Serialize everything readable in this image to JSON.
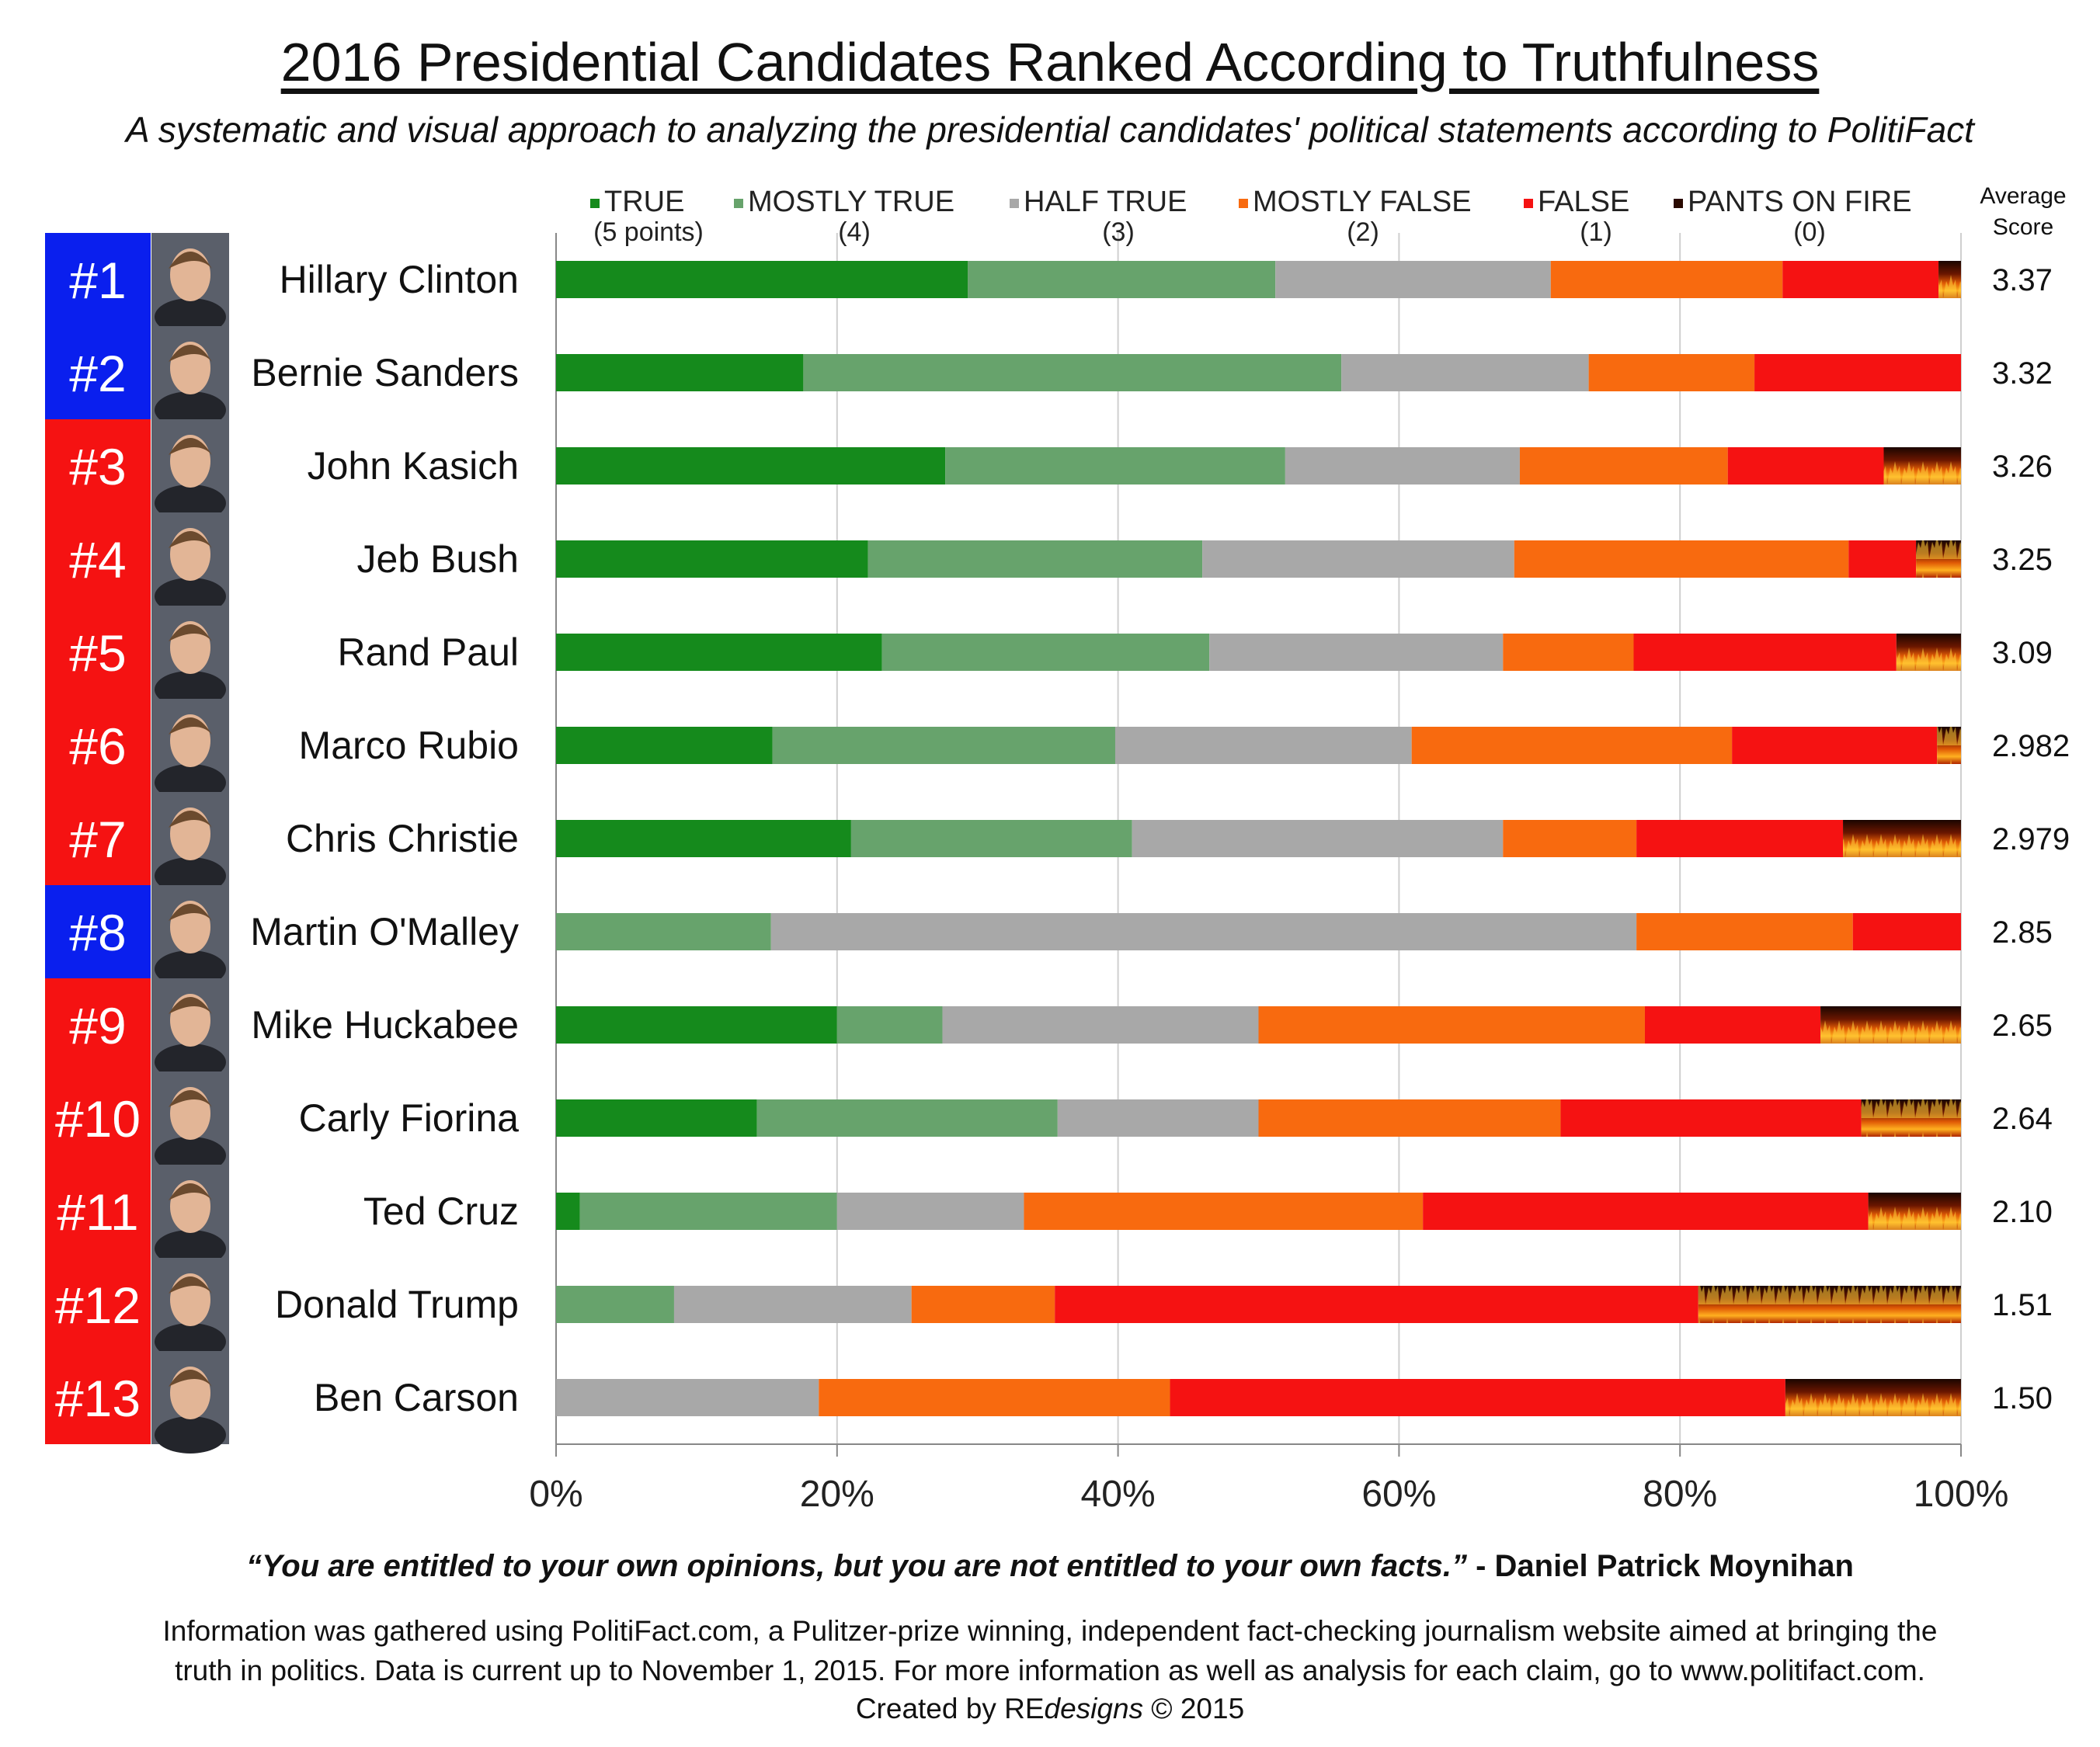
{
  "header": {
    "title": "2016 Presidential Candidates Ranked According to Truthfulness",
    "subtitle": "A systematic and visual approach to analyzing the presidential candidates' political statements according to PolitiFact"
  },
  "average_score_label": [
    "Average",
    "Score"
  ],
  "colors": {
    "true": "#158a1c",
    "mostly_true": "#67a36c",
    "half_true": "#a8a8a8",
    "mostly_false": "#f86a0f",
    "false": "#f51212",
    "pants_on_fire": "#2a0a00",
    "rank_democrat": "#0a1fee",
    "rank_republican": "#f51212"
  },
  "chart_data": {
    "type": "bar",
    "orientation": "horizontal",
    "stacked": "100%",
    "x_ticks": [
      "0%",
      "20%",
      "40%",
      "60%",
      "80%",
      "100%"
    ],
    "xlim": [
      0,
      100
    ],
    "grid": "vertical",
    "legend_position": "top",
    "legend": [
      {
        "label": "TRUE",
        "points": "(5 points)",
        "key": "true"
      },
      {
        "label": "MOSTLY TRUE",
        "points": "(4)",
        "key": "mostly_true"
      },
      {
        "label": "HALF TRUE",
        "points": "(3)",
        "key": "half_true"
      },
      {
        "label": "MOSTLY FALSE",
        "points": "(2)",
        "key": "mostly_false"
      },
      {
        "label": "FALSE",
        "points": "(1)",
        "key": "false"
      },
      {
        "label": "PANTS ON FIRE",
        "points": "(0)",
        "key": "pants_on_fire"
      }
    ],
    "candidates": [
      {
        "rank": "#1",
        "party": "democrat",
        "name": "Hillary  Clinton",
        "score": "3.37",
        "values": [
          29.3,
          21.9,
          19.6,
          16.5,
          11.1,
          1.6
        ]
      },
      {
        "rank": "#2",
        "party": "democrat",
        "name": "Bernie Sanders",
        "score": "3.32",
        "values": [
          17.6,
          38.3,
          17.6,
          11.8,
          14.7,
          0
        ]
      },
      {
        "rank": "#3",
        "party": "republican",
        "name": "John Kasich",
        "score": "3.26",
        "values": [
          27.7,
          24.2,
          16.7,
          14.8,
          11.1,
          5.5
        ]
      },
      {
        "rank": "#4",
        "party": "republican",
        "name": "Jeb Bush",
        "score": "3.25",
        "values": [
          22.2,
          23.8,
          22.2,
          23.8,
          4.8,
          3.2
        ]
      },
      {
        "rank": "#5",
        "party": "republican",
        "name": "Rand Paul",
        "score": "3.09",
        "values": [
          23.2,
          23.3,
          20.9,
          9.3,
          18.7,
          4.6
        ]
      },
      {
        "rank": "#6",
        "party": "republican",
        "name": "Marco Rubio",
        "score": "2.982",
        "values": [
          15.4,
          24.4,
          21.1,
          22.8,
          14.6,
          1.7
        ]
      },
      {
        "rank": "#7",
        "party": "republican",
        "name": "Chris Christie",
        "score": "2.979",
        "values": [
          21.0,
          20.0,
          26.4,
          9.5,
          14.7,
          8.4
        ]
      },
      {
        "rank": "#8",
        "party": "democrat",
        "name": "Martin O'Malley",
        "score": "2.85",
        "values": [
          0,
          15.3,
          61.6,
          15.4,
          7.7,
          0
        ]
      },
      {
        "rank": "#9",
        "party": "republican",
        "name": "Mike Huckabee",
        "score": "2.65",
        "values": [
          20.0,
          7.5,
          22.5,
          27.5,
          12.5,
          10.0
        ]
      },
      {
        "rank": "#10",
        "party": "republican",
        "name": "Carly Fiorina",
        "score": "2.64",
        "values": [
          14.3,
          21.4,
          14.3,
          21.5,
          21.4,
          7.1
        ]
      },
      {
        "rank": "#11",
        "party": "republican",
        "name": "Ted Cruz",
        "score": "2.10",
        "values": [
          1.7,
          18.3,
          13.3,
          28.4,
          31.7,
          6.6
        ]
      },
      {
        "rank": "#12",
        "party": "republican",
        "name": "Donald Trump",
        "score": "1.51",
        "values": [
          0,
          8.4,
          16.9,
          10.2,
          45.8,
          18.7
        ]
      },
      {
        "rank": "#13",
        "party": "republican",
        "name": "Ben Carson",
        "score": "1.50",
        "values": [
          0,
          0,
          18.7,
          25.0,
          43.8,
          12.5
        ]
      }
    ]
  },
  "footer": {
    "quote": "“You are entitled to your own opinions, but you are not entitled to your own facts.”",
    "quote_author": " - Daniel Patrick Moynihan",
    "info_line1": "Information was gathered using PolitiFact.com, a Pulitzer-prize winning, independent fact-checking journalism website aimed at bringing the",
    "info_line2": "truth in politics. Data is current up to November 1, 2015. For more information as well as analysis for each claim, go to www.politifact.com.",
    "credit_prefix": "Created by RE",
    "credit_italic": "designs",
    "credit_suffix": " © 2015"
  }
}
